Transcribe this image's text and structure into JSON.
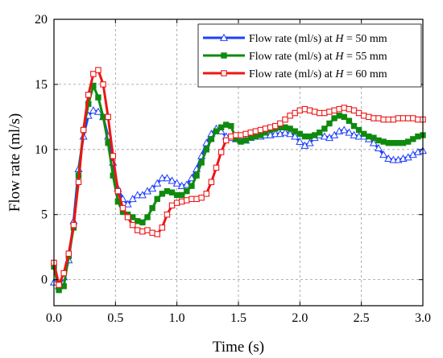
{
  "chart_data": {
    "type": "line",
    "xlabel": "Time (s)",
    "ylabel": "Flow rate (ml/s)",
    "xlim": [
      0,
      3.0
    ],
    "ylim": [
      -2,
      20
    ],
    "xticks": [
      0.0,
      0.5,
      1.0,
      1.5,
      2.0,
      2.5,
      3.0
    ],
    "xtick_labels": [
      "0.0",
      "0.5",
      "1.0",
      "1.5",
      "2.0",
      "2.5",
      "3.0"
    ],
    "yticks": [
      0,
      5,
      10,
      15,
      20
    ],
    "ytick_labels": [
      "0",
      "5",
      "10",
      "15",
      "20"
    ],
    "grid": true,
    "legend_position": "top-right",
    "series": [
      {
        "name": "Flow rate (ml/s) at H = 50 mm",
        "label_prefix": "Flow rate (ml/s) at ",
        "label_var": "H",
        "label_suffix": " = 50 mm",
        "color": "#1f3fff",
        "marker": "triangle",
        "x": [
          0.0,
          0.04,
          0.08,
          0.12,
          0.16,
          0.2,
          0.24,
          0.28,
          0.32,
          0.36,
          0.4,
          0.44,
          0.48,
          0.52,
          0.56,
          0.6,
          0.64,
          0.68,
          0.72,
          0.76,
          0.8,
          0.84,
          0.88,
          0.92,
          0.96,
          1.0,
          1.04,
          1.08,
          1.12,
          1.16,
          1.2,
          1.24,
          1.28,
          1.32,
          1.36,
          1.4,
          1.44,
          1.48,
          1.52,
          1.56,
          1.6,
          1.64,
          1.68,
          1.72,
          1.76,
          1.8,
          1.84,
          1.88,
          1.92,
          1.96,
          2.0,
          2.04,
          2.08,
          2.12,
          2.16,
          2.2,
          2.24,
          2.28,
          2.32,
          2.36,
          2.4,
          2.44,
          2.48,
          2.52,
          2.56,
          2.6,
          2.64,
          2.68,
          2.72,
          2.76,
          2.8,
          2.84,
          2.88,
          2.92,
          2.96,
          3.0
        ],
        "values": [
          -0.2,
          -0.5,
          0.2,
          1.5,
          4.5,
          8.5,
          11.0,
          12.6,
          13.0,
          12.9,
          12.5,
          11.0,
          9.0,
          7.0,
          6.2,
          5.8,
          6.2,
          6.5,
          6.5,
          6.8,
          7.0,
          7.4,
          7.8,
          7.8,
          7.6,
          7.4,
          7.2,
          7.3,
          7.8,
          8.5,
          9.5,
          10.5,
          11.2,
          11.6,
          11.4,
          11.0,
          10.9,
          10.8,
          10.7,
          10.7,
          10.9,
          11.0,
          11.0,
          11.1,
          11.1,
          11.2,
          11.2,
          11.3,
          11.2,
          11.0,
          10.6,
          10.3,
          10.5,
          10.9,
          11.1,
          11.0,
          10.9,
          11.1,
          11.4,
          11.5,
          11.3,
          11.1,
          11.0,
          11.0,
          10.8,
          10.5,
          10.1,
          9.6,
          9.3,
          9.2,
          9.2,
          9.3,
          9.4,
          9.6,
          9.8,
          9.9
        ]
      },
      {
        "name": "Flow rate (ml/s) at H = 55 mm",
        "label_prefix": "Flow rate (ml/s) at ",
        "label_var": "H",
        "label_suffix": " = 55 mm",
        "color": "#0f8a0f",
        "marker": "square-filled",
        "x": [
          0.0,
          0.04,
          0.08,
          0.12,
          0.16,
          0.2,
          0.24,
          0.28,
          0.32,
          0.36,
          0.4,
          0.44,
          0.48,
          0.52,
          0.56,
          0.6,
          0.64,
          0.68,
          0.72,
          0.76,
          0.8,
          0.84,
          0.88,
          0.92,
          0.96,
          1.0,
          1.04,
          1.08,
          1.12,
          1.16,
          1.2,
          1.24,
          1.28,
          1.32,
          1.36,
          1.4,
          1.44,
          1.48,
          1.52,
          1.56,
          1.6,
          1.64,
          1.68,
          1.72,
          1.76,
          1.8,
          1.84,
          1.88,
          1.92,
          1.96,
          2.0,
          2.04,
          2.08,
          2.12,
          2.16,
          2.2,
          2.24,
          2.28,
          2.32,
          2.36,
          2.4,
          2.44,
          2.48,
          2.52,
          2.56,
          2.6,
          2.64,
          2.68,
          2.72,
          2.76,
          2.8,
          2.84,
          2.88,
          2.92,
          2.96,
          3.0
        ],
        "values": [
          1.0,
          -0.8,
          -0.5,
          1.8,
          4.0,
          8.0,
          11.5,
          13.5,
          14.9,
          14.0,
          12.5,
          10.5,
          8.0,
          6.0,
          5.2,
          5.0,
          4.8,
          4.5,
          4.4,
          4.8,
          5.5,
          6.2,
          6.6,
          6.8,
          6.7,
          6.5,
          6.5,
          6.8,
          7.2,
          8.0,
          9.0,
          10.0,
          10.8,
          11.4,
          11.7,
          11.9,
          11.8,
          10.8,
          10.6,
          10.7,
          10.9,
          11.0,
          11.1,
          11.3,
          11.5,
          11.6,
          11.7,
          11.7,
          11.6,
          11.4,
          11.2,
          11.0,
          11.0,
          11.1,
          11.3,
          11.6,
          12.0,
          12.4,
          12.6,
          12.5,
          12.2,
          11.8,
          11.5,
          11.2,
          11.0,
          10.9,
          10.7,
          10.6,
          10.5,
          10.5,
          10.5,
          10.5,
          10.6,
          10.8,
          11.0,
          11.1
        ]
      },
      {
        "name": "Flow rate (ml/s) at H = 60 mm",
        "label_prefix": "Flow rate (ml/s) at ",
        "label_var": "H",
        "label_suffix": " = 60 mm",
        "color": "#ee1515",
        "marker": "square-open",
        "x": [
          0.0,
          0.04,
          0.08,
          0.12,
          0.16,
          0.2,
          0.24,
          0.28,
          0.32,
          0.36,
          0.4,
          0.44,
          0.48,
          0.52,
          0.56,
          0.6,
          0.64,
          0.68,
          0.72,
          0.76,
          0.8,
          0.84,
          0.88,
          0.92,
          0.96,
          1.0,
          1.04,
          1.08,
          1.12,
          1.16,
          1.2,
          1.24,
          1.28,
          1.32,
          1.36,
          1.4,
          1.44,
          1.48,
          1.52,
          1.56,
          1.6,
          1.64,
          1.68,
          1.72,
          1.76,
          1.8,
          1.84,
          1.88,
          1.92,
          1.96,
          2.0,
          2.04,
          2.08,
          2.12,
          2.16,
          2.2,
          2.24,
          2.28,
          2.32,
          2.36,
          2.4,
          2.44,
          2.48,
          2.52,
          2.56,
          2.6,
          2.64,
          2.68,
          2.72,
          2.76,
          2.8,
          2.84,
          2.88,
          2.92,
          2.96,
          3.0
        ],
        "values": [
          1.3,
          -0.4,
          0.5,
          2.0,
          4.2,
          7.5,
          11.5,
          14.2,
          15.8,
          16.1,
          15.0,
          12.5,
          9.5,
          6.8,
          5.5,
          4.8,
          4.2,
          3.8,
          3.7,
          3.8,
          3.6,
          3.5,
          4.0,
          5.0,
          5.7,
          5.9,
          6.0,
          6.1,
          6.2,
          6.2,
          6.3,
          6.6,
          7.5,
          8.6,
          9.8,
          10.7,
          11.0,
          11.1,
          11.1,
          11.2,
          11.3,
          11.4,
          11.5,
          11.6,
          11.7,
          11.8,
          12.0,
          12.3,
          12.6,
          12.8,
          13.0,
          13.1,
          13.0,
          12.9,
          12.8,
          12.8,
          12.9,
          13.0,
          13.1,
          13.2,
          13.1,
          13.0,
          12.8,
          12.6,
          12.5,
          12.4,
          12.4,
          12.3,
          12.3,
          12.3,
          12.4,
          12.4,
          12.4,
          12.4,
          12.3,
          12.3
        ]
      }
    ]
  }
}
